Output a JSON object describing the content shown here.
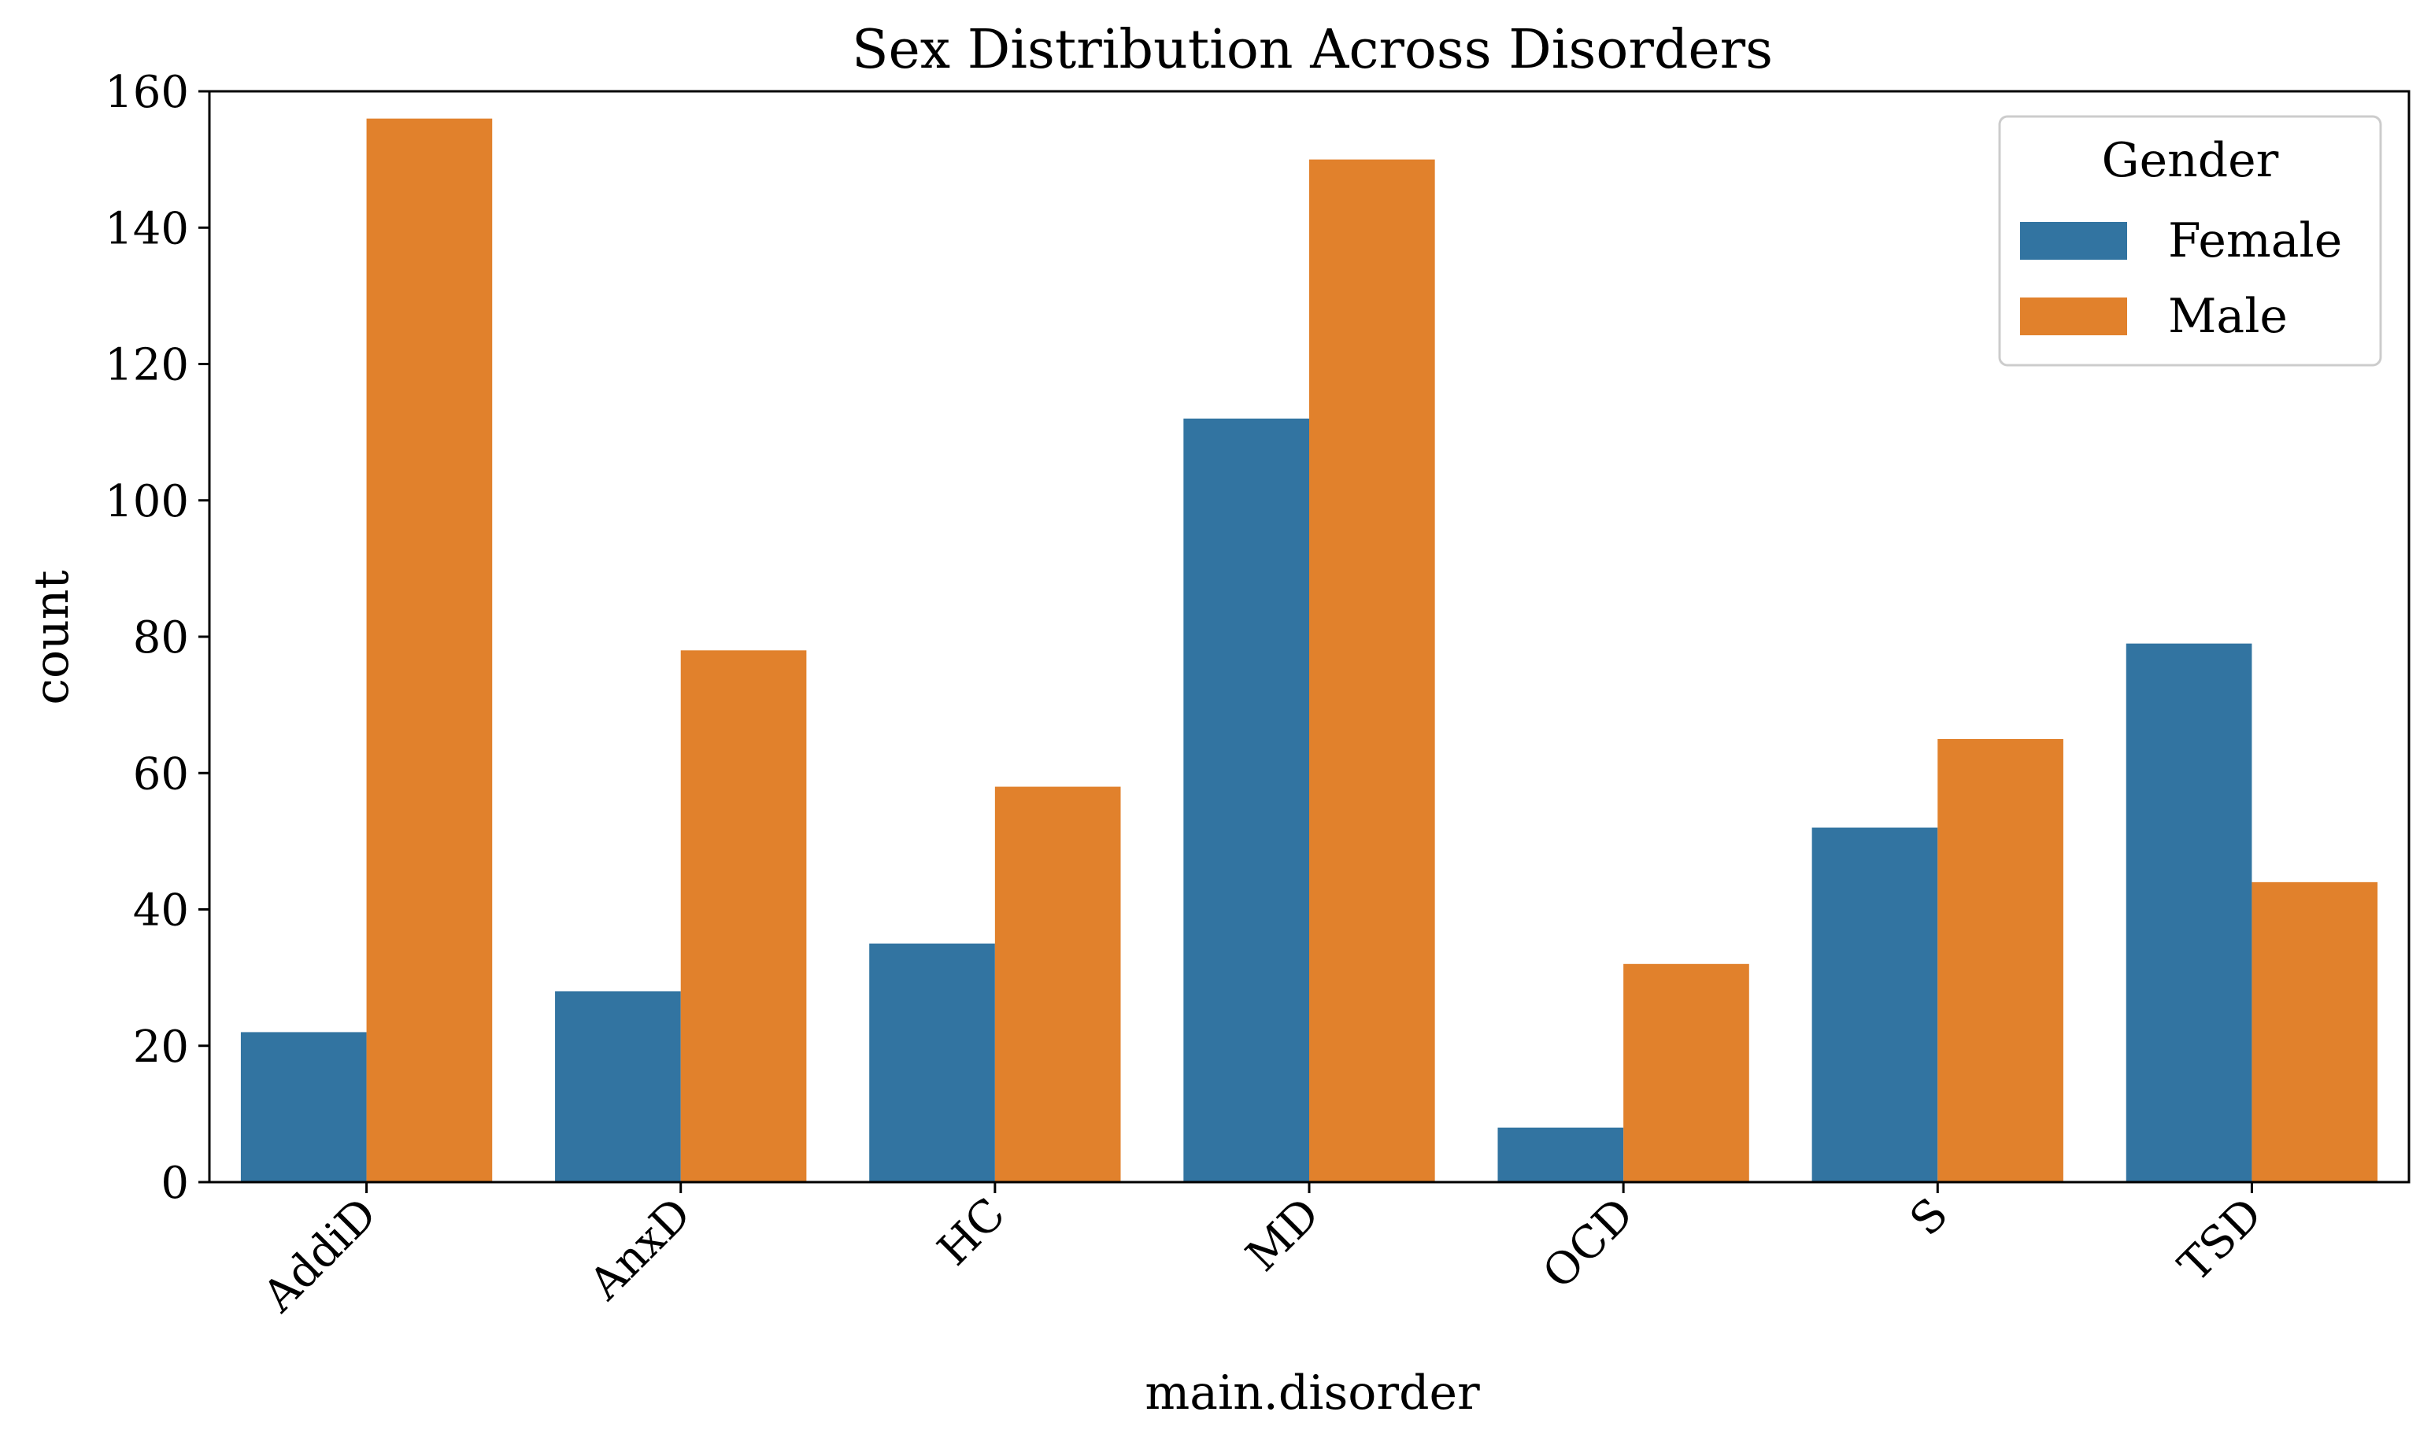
{
  "chart_data": {
    "type": "bar",
    "title": "Sex Distribution Across Disorders",
    "xlabel": "main.disorder",
    "ylabel": "count",
    "categories": [
      "AddiD",
      "AnxD",
      "HC",
      "MD",
      "OCD",
      "S",
      "TSD"
    ],
    "series": [
      {
        "name": "Female",
        "color": "#3274a1",
        "values": [
          22,
          28,
          35,
          112,
          8,
          52,
          79
        ]
      },
      {
        "name": "Male",
        "color": "#e1812c",
        "values": [
          156,
          78,
          58,
          150,
          32,
          65,
          44
        ]
      }
    ],
    "ylim": [
      0,
      160
    ],
    "yticks": [
      0,
      20,
      40,
      60,
      80,
      100,
      120,
      140,
      160
    ],
    "legend": {
      "title": "Gender",
      "placement": "top-right"
    },
    "grid": false
  }
}
